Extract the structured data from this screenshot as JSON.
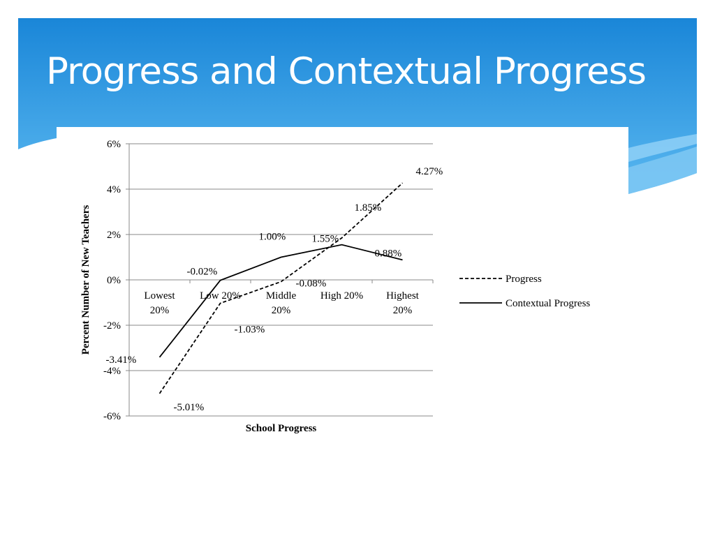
{
  "slide": {
    "title": "Progress and Contextual Progress"
  },
  "colors": {
    "banner_top": "#1a86d8",
    "banner_bottom": "#5ab8f0",
    "accent_light": "#8fd0f7",
    "line": "#000000",
    "grid": "#8a8a8a"
  },
  "chart_data": {
    "type": "line",
    "xlabel": "School Progress",
    "ylabel": "Percent Number of New Teachers",
    "ylim": [
      -6,
      6
    ],
    "yticks": [
      6,
      4,
      2,
      0,
      -2,
      -4,
      -6
    ],
    "ytick_labels": [
      "6%",
      "4%",
      "2%",
      "0%",
      "-2%",
      "-4%",
      "-6%"
    ],
    "categories": [
      [
        "Lowest",
        "20%"
      ],
      [
        "Low 20%"
      ],
      [
        "Middle",
        "20%"
      ],
      [
        "High 20%"
      ],
      [
        "Highest",
        "20%"
      ]
    ],
    "grid": true,
    "legend_position": "right",
    "series": [
      {
        "name": "Progress",
        "style": "dashed",
        "values": [
          -5.01,
          -1.03,
          -0.08,
          1.85,
          4.27
        ],
        "labels": [
          "-5.01%",
          "-1.03%",
          "-0.08%",
          "1.85%",
          "4.27%"
        ]
      },
      {
        "name": "Contextual Progress",
        "style": "solid",
        "values": [
          -3.41,
          -0.02,
          1.0,
          1.55,
          0.88
        ],
        "labels": [
          "-3.41%",
          "-0.02%",
          "1.00%",
          "1.55%",
          "0.88%"
        ]
      }
    ]
  }
}
